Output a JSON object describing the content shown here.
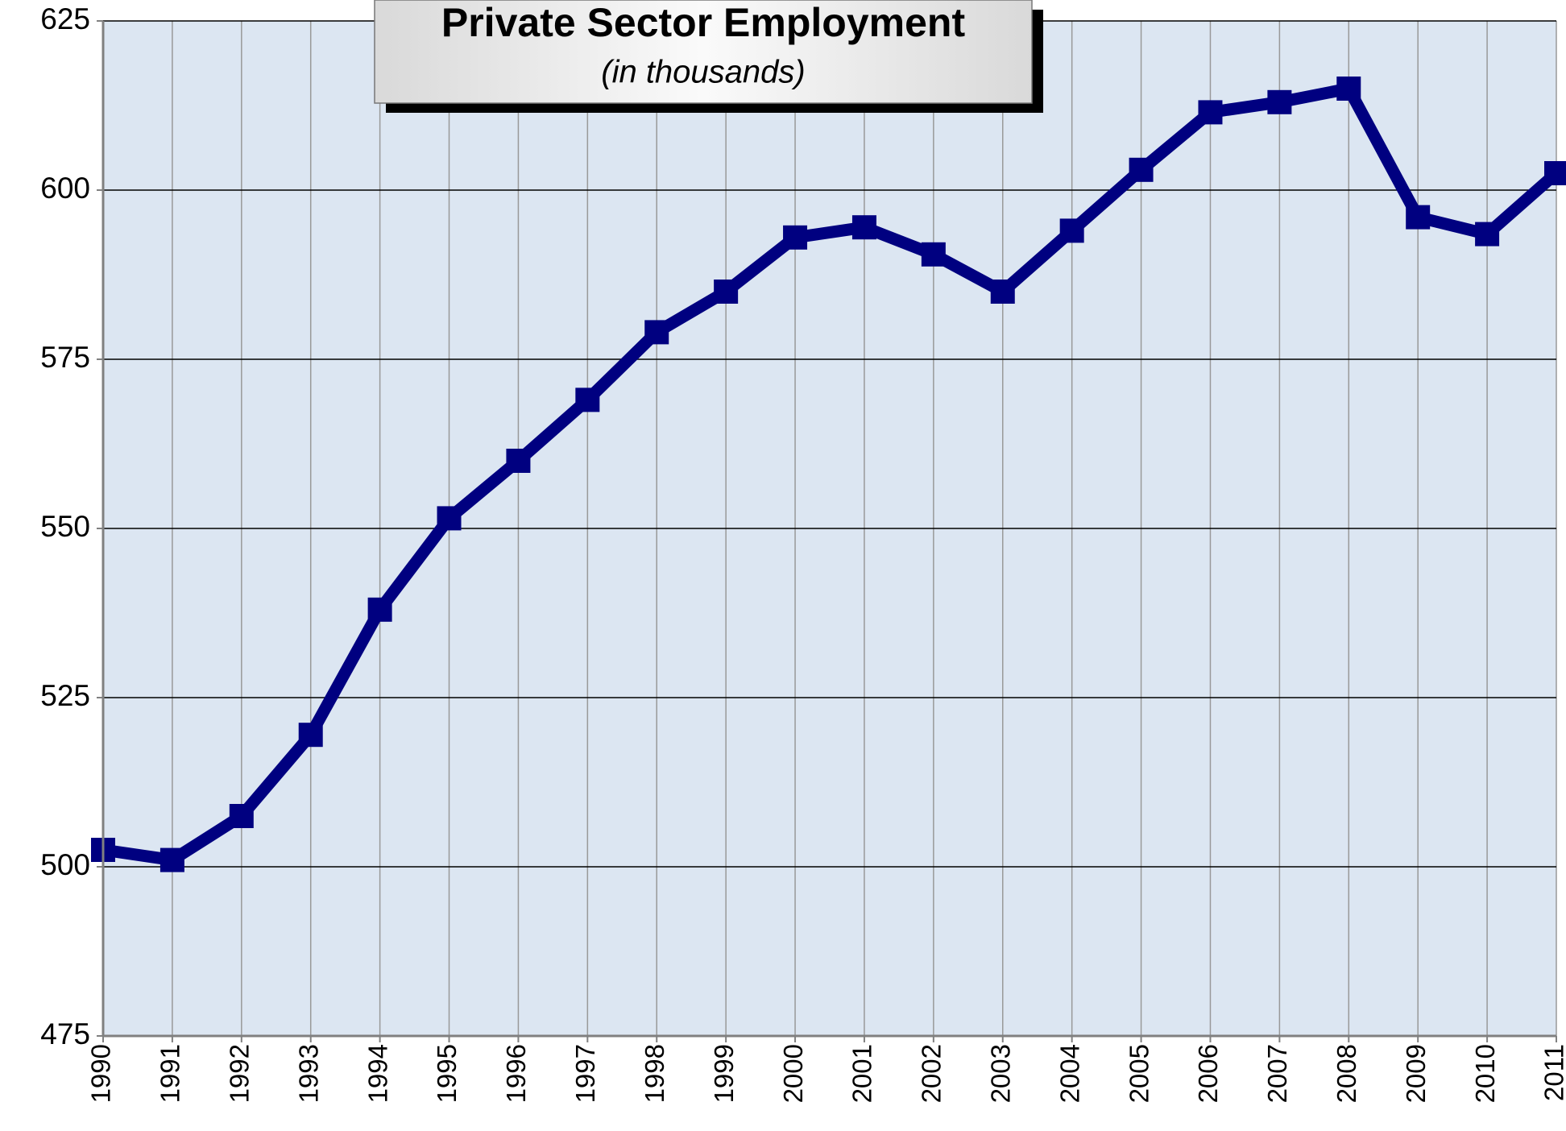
{
  "chart_data": {
    "type": "line",
    "title": "Private Sector Employment",
    "subtitle": "(in thousands)",
    "categories": [
      "1990",
      "1991",
      "1992",
      "1993",
      "1994",
      "1995",
      "1996",
      "1997",
      "1998",
      "1999",
      "2000",
      "2001",
      "2002",
      "2003",
      "2004",
      "2005",
      "2006",
      "2007",
      "2008",
      "2009",
      "2010",
      "2011"
    ],
    "series": [
      {
        "name": "Private Sector Employment",
        "color": "#000080",
        "values": [
          502.5,
          501,
          507.5,
          519.5,
          538,
          551.5,
          560,
          569,
          579,
          585,
          593,
          594.5,
          590.5,
          585,
          594,
          603,
          611.5,
          613,
          615,
          596,
          593.5,
          602.5
        ]
      }
    ],
    "ylim": [
      475,
      625
    ],
    "yticks": [
      475,
      500,
      525,
      550,
      575,
      600,
      625
    ],
    "grid": true
  }
}
